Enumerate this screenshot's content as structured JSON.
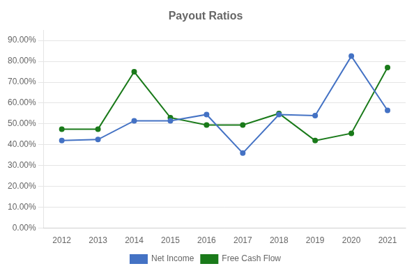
{
  "chart_data": {
    "type": "line",
    "title": "Payout Ratios",
    "categories": [
      "2012",
      "2013",
      "2014",
      "2015",
      "2016",
      "2017",
      "2018",
      "2019",
      "2020",
      "2021"
    ],
    "series": [
      {
        "name": "Net Income",
        "color": "#4472C4",
        "marker": "circle",
        "line_style": "solid",
        "values": [
          0.42,
          0.425,
          0.515,
          0.515,
          0.545,
          0.36,
          0.545,
          0.54,
          0.825,
          0.565
        ]
      },
      {
        "name": "Free Cash Flow",
        "color": "#1a7a1a",
        "marker": "circle",
        "line_style": "solid",
        "values": [
          0.475,
          0.475,
          0.75,
          0.53,
          0.495,
          0.495,
          0.55,
          0.42,
          0.455,
          0.77
        ]
      }
    ],
    "ylim": [
      0.0,
      0.95
    ],
    "yticks": [
      {
        "value": 0.0,
        "label": "0.00%"
      },
      {
        "value": 0.1,
        "label": "10.00%"
      },
      {
        "value": 0.2,
        "label": "20.00%"
      },
      {
        "value": 0.3,
        "label": "30.00%"
      },
      {
        "value": 0.4,
        "label": "40.00%"
      },
      {
        "value": 0.5,
        "label": "50.00%"
      },
      {
        "value": 0.6,
        "label": "60.00%"
      },
      {
        "value": 0.7,
        "label": "70.00%"
      },
      {
        "value": 0.8,
        "label": "80.00%"
      },
      {
        "value": 0.9,
        "label": "90.00%"
      }
    ],
    "grid": true,
    "legend": "bottom"
  }
}
